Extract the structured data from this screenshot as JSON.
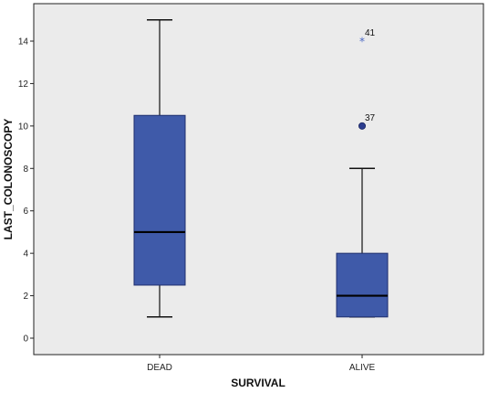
{
  "chart_data": {
    "type": "box",
    "xlabel": "SURVIVAL",
    "ylabel": "LAST_COLONOSCOPY",
    "ylim": [
      -1,
      16
    ],
    "yticks": [
      0,
      2,
      4,
      6,
      8,
      10,
      12,
      14
    ],
    "categories": [
      "DEAD",
      "ALIVE"
    ],
    "boxes": [
      {
        "category": "DEAD",
        "min": 1,
        "q1": 2.5,
        "median": 5,
        "q3": 10.5,
        "max": 15,
        "outliers": []
      },
      {
        "category": "ALIVE",
        "min": 1,
        "q1": 1,
        "median": 2,
        "q3": 4,
        "max": 8,
        "outliers": [
          {
            "value": 10,
            "label": "37",
            "marker": "circle"
          },
          {
            "value": 14,
            "label": "41",
            "marker": "star"
          }
        ]
      }
    ],
    "grid": false,
    "colors": {
      "plot_background": "#ebebeb",
      "box_fill": "#3f5aa9",
      "box_stroke": "#1f2f6e",
      "outlier": "#2c3d8f"
    }
  }
}
